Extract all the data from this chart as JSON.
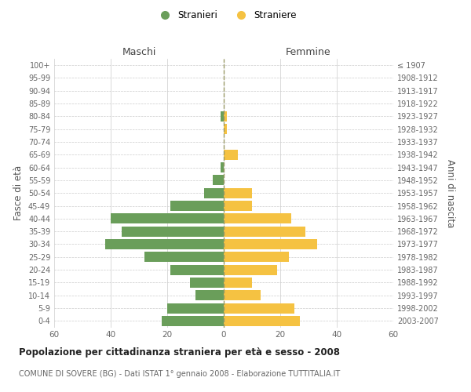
{
  "age_groups": [
    "0-4",
    "5-9",
    "10-14",
    "15-19",
    "20-24",
    "25-29",
    "30-34",
    "35-39",
    "40-44",
    "45-49",
    "50-54",
    "55-59",
    "60-64",
    "65-69",
    "70-74",
    "75-79",
    "80-84",
    "85-89",
    "90-94",
    "95-99",
    "100+"
  ],
  "birth_years": [
    "2003-2007",
    "1998-2002",
    "1993-1997",
    "1988-1992",
    "1983-1987",
    "1978-1982",
    "1973-1977",
    "1968-1972",
    "1963-1967",
    "1958-1962",
    "1953-1957",
    "1948-1952",
    "1943-1947",
    "1938-1942",
    "1933-1937",
    "1928-1932",
    "1923-1927",
    "1918-1922",
    "1913-1917",
    "1908-1912",
    "≤ 1907"
  ],
  "males": [
    22,
    20,
    10,
    12,
    19,
    28,
    42,
    36,
    40,
    19,
    7,
    4,
    1,
    0,
    0,
    0,
    1,
    0,
    0,
    0,
    0
  ],
  "females": [
    27,
    25,
    13,
    10,
    19,
    23,
    33,
    29,
    24,
    10,
    10,
    0,
    0,
    5,
    0,
    1,
    1,
    0,
    0,
    0,
    0
  ],
  "male_color": "#6a9e5a",
  "female_color": "#f5c242",
  "background_color": "#ffffff",
  "grid_color": "#cccccc",
  "xlim": 60,
  "title": "Popolazione per cittadinanza straniera per età e sesso - 2008",
  "subtitle": "COMUNE DI SOVERE (BG) - Dati ISTAT 1° gennaio 2008 - Elaborazione TUTTITALIA.IT",
  "ylabel_left": "Fasce di età",
  "ylabel_right": "Anni di nascita",
  "header_left": "Maschi",
  "header_right": "Femmine",
  "legend_male": "Stranieri",
  "legend_female": "Straniere",
  "bar_height": 0.8
}
